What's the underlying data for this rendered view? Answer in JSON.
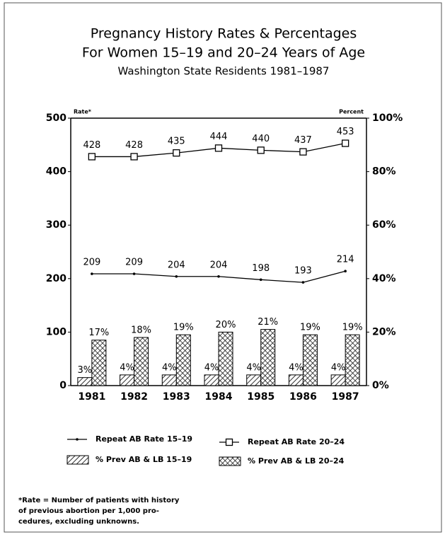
{
  "chart_data": {
    "type": "bar",
    "title": [
      "Pregnancy History Rates & Percentages",
      "For Women 15–19 and 20–24 Years of Age"
    ],
    "subtitle": "Washington State Residents 1981–1987",
    "y_label": "Rate*",
    "y2_label": "Percent",
    "categories": [
      "1981",
      "1982",
      "1983",
      "1984",
      "1985",
      "1986",
      "1987"
    ],
    "ylim": [
      0,
      500
    ],
    "yticks": [
      0,
      100,
      200,
      300,
      400,
      500
    ],
    "y2lim": [
      0,
      100
    ],
    "y2ticks": [
      {
        "value": 0,
        "label": "0%"
      },
      {
        "value": 20,
        "label": "20%"
      },
      {
        "value": 40,
        "label": "40%"
      },
      {
        "value": 60,
        "label": "60%"
      },
      {
        "value": 80,
        "label": "80%"
      },
      {
        "value": 100,
        "label": "100%"
      }
    ],
    "grid": false,
    "series": [
      {
        "name": "Repeat AB Rate 15–19",
        "type": "line",
        "marker": "dot",
        "color": "#000000",
        "values": [
          209,
          209,
          204,
          204,
          198,
          193,
          214
        ]
      },
      {
        "name": "Repeat AB Rate 20–24",
        "type": "line",
        "marker": "square",
        "color": "#000000",
        "values": [
          428,
          428,
          435,
          444,
          440,
          437,
          453
        ]
      },
      {
        "name": "% Prev AB & LB 15–19",
        "type": "bar",
        "axis": "y2",
        "pattern": "diagonal",
        "color": "#000000",
        "values": [
          3,
          4,
          4,
          4,
          4,
          4,
          4
        ],
        "value_labels": [
          "3%",
          "4%",
          "4%",
          "4%",
          "4%",
          "4%",
          "4%"
        ]
      },
      {
        "name": "% Prev AB & LB 20–24",
        "type": "bar",
        "axis": "y2",
        "pattern": "crosshatch",
        "color": "#000000",
        "values": [
          17,
          18,
          19,
          20,
          21,
          19,
          19
        ],
        "value_labels": [
          "17%",
          "18%",
          "19%",
          "20%",
          "21%",
          "19%",
          "19%"
        ]
      }
    ]
  },
  "footnote": [
    "*Rate = Number of patients with history",
    "of previous abortion per 1,000 pro-",
    "cedures, excluding unknowns."
  ]
}
